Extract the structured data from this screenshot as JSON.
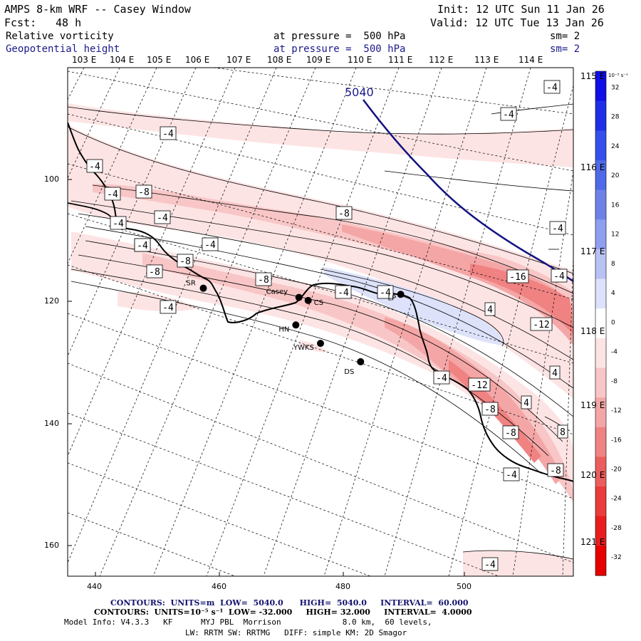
{
  "header": {
    "title": "AMPS 8-km WRF -- Casey Window",
    "init": "Init: 12 UTC Sun 11 Jan 26",
    "fcst_label": "Fcst:",
    "fcst_value": "48 h",
    "valid": "Valid: 12 UTC Tue 13 Jan 26"
  },
  "fields": [
    {
      "name": "Relative vorticity",
      "pressure": "at pressure =  500 hPa",
      "smooth": "sm= 2",
      "color": "#000000"
    },
    {
      "name": "Geopotential height",
      "pressure": "at pressure =  500 hPa",
      "smooth": "sm= 2",
      "color": "#1a1a8c"
    }
  ],
  "top_lon_labels": [
    "103 E",
    "104 E",
    "105 E",
    "106 E",
    "107 E",
    "108 E",
    "109 E",
    "110 E",
    "111 E",
    "112 E",
    "113 E",
    "114 E"
  ],
  "right_lon_labels": [
    "115 E",
    "116 E",
    "117 E",
    "118 E",
    "119 E",
    "120 E",
    "121 E"
  ],
  "x_axis": {
    "ticks": [
      "440",
      "460",
      "480",
      "500"
    ],
    "range": [
      435,
      517
    ]
  },
  "y_axis": {
    "ticks": [
      "100",
      "120",
      "140",
      "160"
    ],
    "range": [
      82,
      165
    ]
  },
  "colorbar": {
    "units": "10⁻⁵ s⁻¹",
    "labels": [
      "32",
      "28",
      "24",
      "20",
      "16",
      "12",
      "8",
      "4",
      "0",
      "-4",
      "-8",
      "-12",
      "-16",
      "-20",
      "-24",
      "-28",
      "-32"
    ],
    "colors": [
      "#1010e6",
      "#1f2fe8",
      "#3550ea",
      "#4f6ae8",
      "#6d82e9",
      "#8f9ff0",
      "#b8c2f5",
      "#dde2fa",
      "#ffffff",
      "#fde4e4",
      "#f8c6c6",
      "#f4a6a6",
      "#f08282",
      "#ec5e5e",
      "#ea3c3c",
      "#e81e1e",
      "#e60000"
    ]
  },
  "geopotential_label": "5040",
  "vorticity_labels": [
    "-4",
    "-4",
    "-4",
    "-4",
    "-4",
    "-8",
    "-4",
    "-4",
    "-4",
    "-8",
    "-8",
    "-4",
    "-4",
    "-8",
    "-8",
    "-4",
    "-4",
    "-4",
    "-16",
    "4",
    "-12",
    "4",
    "-12",
    "-4",
    "-8",
    "4",
    "-8",
    "8",
    "-4",
    "-8",
    "-4",
    "-4",
    "-4"
  ],
  "stations": [
    {
      "name": "SR",
      "x": 457,
      "y": 118
    },
    {
      "name": "Casey",
      "x": 472.5,
      "y": 119.5
    },
    {
      "name": "CS",
      "x": 474,
      "y": 120
    },
    {
      "name": "HN",
      "x": 472,
      "y": 124
    },
    {
      "name": "YWKS",
      "x": 476,
      "y": 127
    },
    {
      "name": "DS",
      "x": 482.5,
      "y": 130
    },
    {
      "name": "LP",
      "x": 489,
      "y": 119
    }
  ],
  "footer": {
    "contour1": "CONTOURS:  UNITS=m  LOW=  5040.0      HIGH=  5040.0     INTERVAL=  60.000",
    "contour2": "CONTOURS:  UNITS=10⁻⁵ s⁻¹  LOW= -32.000     HIGH= 32.000     INTERVAL=  4.0000",
    "model1": "Model Info: V4.3.3   KF      MYJ PBL  Morrison             8.0 km,  60 levels,",
    "model2": "LW: RRTM SW: RRTMG   DIFF: simple KM: 2D Smagor"
  }
}
